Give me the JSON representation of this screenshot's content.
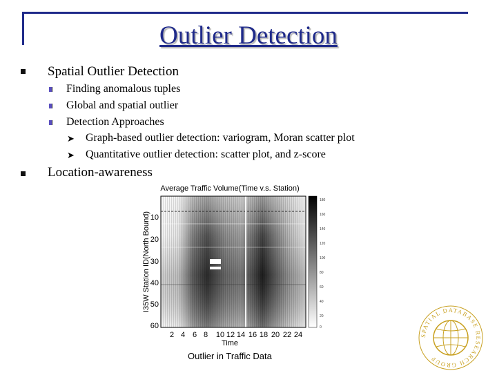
{
  "slide": {
    "title": "Outlier Detection",
    "bullets": [
      {
        "text": "Spatial Outlier Detection",
        "children": [
          {
            "text": "Finding anomalous tuples",
            "children": []
          },
          {
            "text": "Global and spatial outlier",
            "children": []
          },
          {
            "text": "Detection Approaches",
            "children": [
              {
                "text": "Graph-based outlier detection: variogram, Moran scatter plot"
              },
              {
                "text": "Quantitative outlier detection: scatter plot, and z-score"
              }
            ]
          }
        ]
      },
      {
        "text": "Location-awareness",
        "children": []
      }
    ]
  },
  "figure": {
    "title": "Average Traffic Volume(Time v.s. Station)",
    "xlabel": "Time",
    "ylabel": "I35W Station ID(North Bound)",
    "x_ticks": [
      "2",
      "4",
      "6",
      "8",
      "10",
      "12",
      "14",
      "16",
      "18",
      "20",
      "22",
      "24"
    ],
    "y_ticks": [
      "10",
      "20",
      "30",
      "40",
      "50",
      "60"
    ],
    "colorbar_ticks": [
      "180",
      "160",
      "140",
      "120",
      "100",
      "80",
      "60",
      "40",
      "20",
      "0"
    ],
    "caption": "Outlier in Traffic Data"
  },
  "logo": {
    "text": "SPATIAL DATABASE RESEARCH GROUP"
  },
  "colors": {
    "title": "#1f2a8a",
    "frame": "#1f2a8a",
    "sub_bullet": "#5a4fbf"
  }
}
